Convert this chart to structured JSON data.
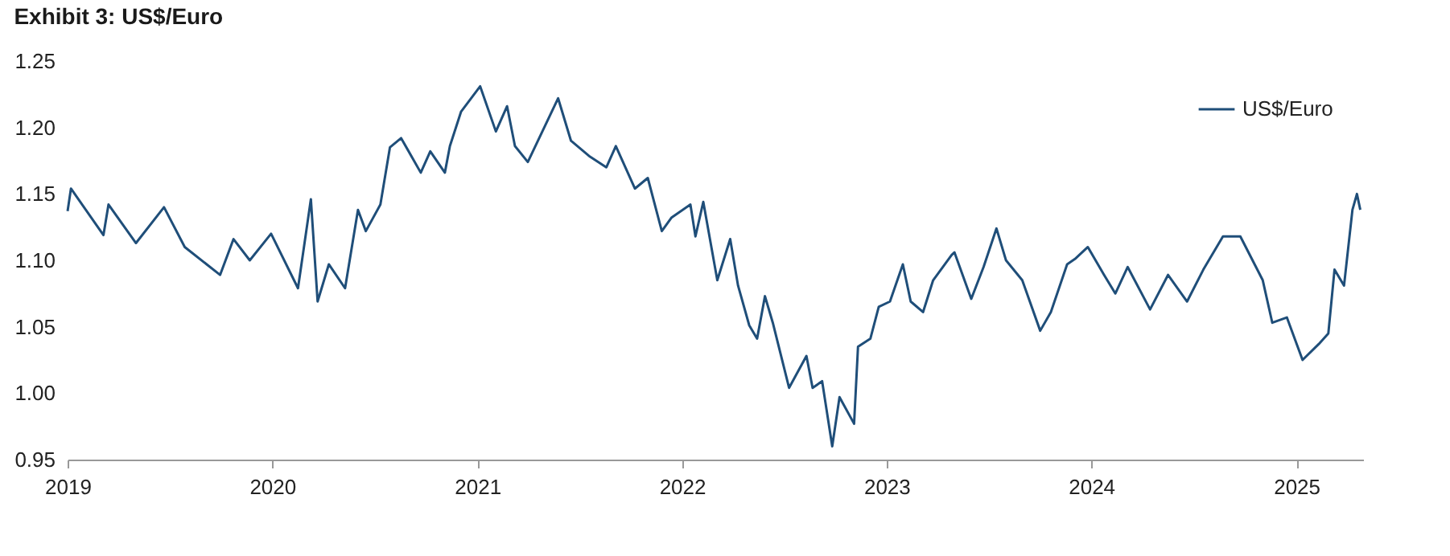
{
  "chart_data": {
    "type": "line",
    "title": "Exhibit 3: US$/Euro",
    "x": [
      "2019-01-01",
      "2019-01-07",
      "2019-03-06",
      "2019-03-15",
      "2019-05-03",
      "2019-06-22",
      "2019-07-29",
      "2019-09-30",
      "2019-10-24",
      "2019-11-22",
      "2019-12-30",
      "2020-02-16",
      "2020-03-10",
      "2020-03-22",
      "2020-04-11",
      "2020-05-10",
      "2020-06-02",
      "2020-06-16",
      "2020-07-12",
      "2020-07-29",
      "2020-08-18",
      "2020-09-22",
      "2020-10-09",
      "2020-11-04",
      "2020-11-13",
      "2020-12-03",
      "2021-01-06",
      "2021-02-03",
      "2021-02-23",
      "2021-03-09",
      "2021-04-01",
      "2021-05-25",
      "2021-06-17",
      "2021-07-21",
      "2021-08-19",
      "2021-09-05",
      "2021-10-09",
      "2021-11-01",
      "2021-11-26",
      "2021-12-13",
      "2022-01-16",
      "2022-01-25",
      "2022-02-08",
      "2022-03-05",
      "2022-03-28",
      "2022-04-11",
      "2022-05-01",
      "2022-05-15",
      "2022-05-29",
      "2022-06-12",
      "2022-07-11",
      "2022-08-11",
      "2022-08-22",
      "2022-09-08",
      "2022-09-26",
      "2022-10-09",
      "2022-11-04",
      "2022-11-11",
      "2022-12-03",
      "2022-12-18",
      "2023-01-07",
      "2023-01-30",
      "2023-02-13",
      "2023-03-07",
      "2023-03-25",
      "2023-04-27",
      "2023-05-02",
      "2023-06-01",
      "2023-06-23",
      "2023-07-16",
      "2023-08-02",
      "2023-08-31",
      "2023-10-02",
      "2023-10-21",
      "2023-11-19",
      "2023-12-03",
      "2023-12-26",
      "2024-01-24",
      "2024-02-13",
      "2024-03-06",
      "2024-04-15",
      "2024-05-17",
      "2024-06-20",
      "2024-07-19",
      "2024-08-23",
      "2024-09-23",
      "2024-11-02",
      "2024-11-19",
      "2024-12-15",
      "2025-01-12",
      "2025-02-10",
      "2025-02-27",
      "2025-03-10",
      "2025-03-27",
      "2025-04-11",
      "2025-04-19",
      "2025-04-25"
    ],
    "series": [
      {
        "name": "US$/Euro",
        "color": "#1f4e79",
        "values": [
          1.137,
          1.154,
          1.119,
          1.142,
          1.113,
          1.14,
          1.11,
          1.089,
          1.116,
          1.1,
          1.12,
          1.079,
          1.146,
          1.069,
          1.097,
          1.079,
          1.138,
          1.122,
          1.142,
          1.185,
          1.192,
          1.166,
          1.182,
          1.166,
          1.186,
          1.212,
          1.231,
          1.197,
          1.216,
          1.186,
          1.174,
          1.222,
          1.19,
          1.178,
          1.17,
          1.186,
          1.154,
          1.162,
          1.122,
          1.132,
          1.142,
          1.118,
          1.144,
          1.085,
          1.116,
          1.081,
          1.051,
          1.041,
          1.073,
          1.053,
          1.004,
          1.028,
          1.004,
          1.009,
          0.96,
          0.997,
          0.977,
          1.035,
          1.041,
          1.065,
          1.069,
          1.097,
          1.069,
          1.061,
          1.085,
          1.104,
          1.106,
          1.071,
          1.095,
          1.124,
          1.1,
          1.085,
          1.047,
          1.061,
          1.097,
          1.101,
          1.11,
          1.089,
          1.075,
          1.095,
          1.063,
          1.089,
          1.069,
          1.093,
          1.118,
          1.118,
          1.085,
          1.053,
          1.057,
          1.025,
          1.037,
          1.045,
          1.093,
          1.081,
          1.138,
          1.15,
          1.138
        ]
      }
    ],
    "xlim": [
      "2019-01-01",
      "2025-04-30"
    ],
    "xticks": [
      "2019",
      "2020",
      "2021",
      "2022",
      "2023",
      "2024",
      "2025"
    ],
    "ylim": [
      0.95,
      1.25
    ],
    "yticks": [
      {
        "value": 0.95,
        "label": "0.95"
      },
      {
        "value": 1.0,
        "label": "1.00"
      },
      {
        "value": 1.05,
        "label": "1.05"
      },
      {
        "value": 1.1,
        "label": "1.10"
      },
      {
        "value": 1.15,
        "label": "1.15"
      },
      {
        "value": 1.2,
        "label": "1.20"
      },
      {
        "value": 1.25,
        "label": "1.25"
      }
    ],
    "grid": false,
    "legend": "top right",
    "line_style": "solid",
    "marker": "none"
  }
}
